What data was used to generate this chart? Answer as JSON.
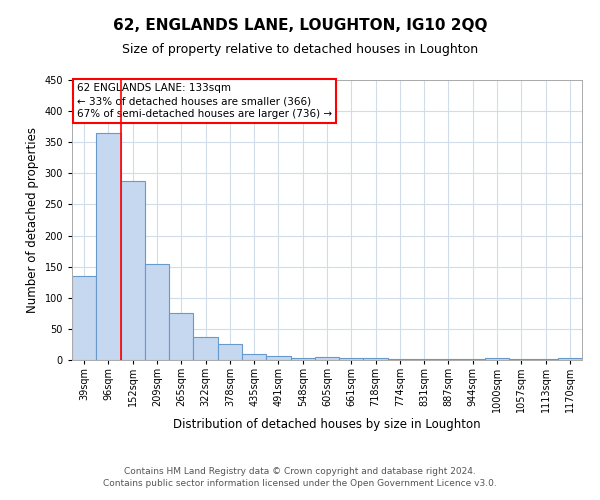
{
  "title": "62, ENGLANDS LANE, LOUGHTON, IG10 2QQ",
  "subtitle": "Size of property relative to detached houses in Loughton",
  "xlabel": "Distribution of detached houses by size in Loughton",
  "ylabel": "Number of detached properties",
  "bar_labels": [
    "39sqm",
    "96sqm",
    "152sqm",
    "209sqm",
    "265sqm",
    "322sqm",
    "378sqm",
    "435sqm",
    "491sqm",
    "548sqm",
    "605sqm",
    "661sqm",
    "718sqm",
    "774sqm",
    "831sqm",
    "887sqm",
    "944sqm",
    "1000sqm",
    "1057sqm",
    "1113sqm",
    "1170sqm"
  ],
  "bar_values": [
    135,
    365,
    288,
    155,
    76,
    37,
    26,
    10,
    6,
    3,
    5,
    4,
    3,
    2,
    1,
    1,
    1,
    4,
    1,
    1,
    4
  ],
  "bar_color": "#c5d8f0",
  "bar_edge_color": "#6699cc",
  "red_line_x": 1.5,
  "annotation_line1": "62 ENGLANDS LANE: 133sqm",
  "annotation_line2": "← 33% of detached houses are smaller (366)",
  "annotation_line3": "67% of semi-detached houses are larger (736) →",
  "ylim": [
    0,
    450
  ],
  "yticks": [
    0,
    50,
    100,
    150,
    200,
    250,
    300,
    350,
    400,
    450
  ],
  "footer_line1": "Contains HM Land Registry data © Crown copyright and database right 2024.",
  "footer_line2": "Contains public sector information licensed under the Open Government Licence v3.0.",
  "title_fontsize": 11,
  "subtitle_fontsize": 9,
  "tick_fontsize": 7,
  "label_fontsize": 8.5,
  "annotation_fontsize": 7.5,
  "footer_fontsize": 6.5,
  "background_color": "#ffffff",
  "grid_color": "#d0dde8"
}
